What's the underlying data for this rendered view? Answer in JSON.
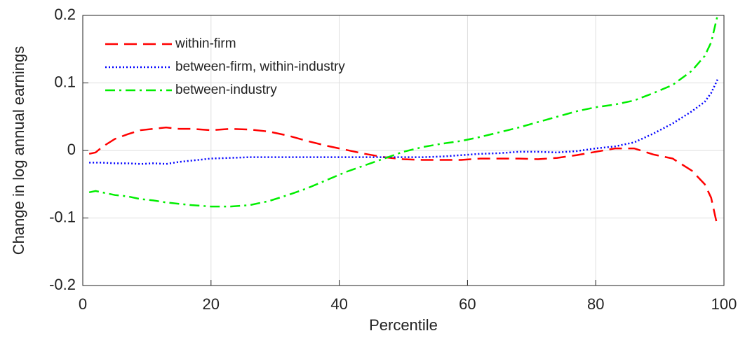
{
  "chart_data": {
    "type": "line",
    "x_label": "Percentile",
    "y_label": "Change in log annual earnings",
    "x": [
      1,
      2,
      3,
      5,
      7,
      9,
      11,
      13,
      15,
      17,
      20,
      23,
      26,
      29,
      32,
      35,
      38,
      41,
      44,
      47,
      50,
      53,
      56,
      59,
      62,
      65,
      68,
      71,
      74,
      77,
      80,
      83,
      86,
      89,
      92,
      95,
      97,
      98,
      99
    ],
    "series": [
      {
        "name": "within-firm",
        "color": "#ff0000",
        "dash": "dashed",
        "values": [
          -0.005,
          -0.003,
          0.005,
          0.017,
          0.024,
          0.03,
          0.032,
          0.034,
          0.032,
          0.032,
          0.03,
          0.032,
          0.031,
          0.028,
          0.022,
          0.014,
          0.007,
          0.001,
          -0.005,
          -0.01,
          -0.013,
          -0.014,
          -0.014,
          -0.014,
          -0.012,
          -0.012,
          -0.012,
          -0.013,
          -0.011,
          -0.007,
          -0.002,
          0.003,
          0.003,
          -0.006,
          -0.012,
          -0.03,
          -0.05,
          -0.07,
          -0.113
        ]
      },
      {
        "name": "between-firm, within-industry",
        "color": "#0000ff",
        "dash": "dotted",
        "values": [
          -0.018,
          -0.018,
          -0.018,
          -0.019,
          -0.019,
          -0.02,
          -0.019,
          -0.02,
          -0.017,
          -0.015,
          -0.012,
          -0.011,
          -0.01,
          -0.01,
          -0.01,
          -0.01,
          -0.01,
          -0.01,
          -0.01,
          -0.01,
          -0.01,
          -0.01,
          -0.009,
          -0.007,
          -0.005,
          -0.004,
          -0.002,
          -0.002,
          -0.003,
          -0.001,
          0.003,
          0.006,
          0.012,
          0.025,
          0.04,
          0.058,
          0.072,
          0.085,
          0.105
        ]
      },
      {
        "name": "between-industry",
        "color": "#00ee00",
        "dash": "dashdot",
        "values": [
          -0.062,
          -0.06,
          -0.062,
          -0.066,
          -0.068,
          -0.072,
          -0.074,
          -0.077,
          -0.079,
          -0.081,
          -0.083,
          -0.083,
          -0.081,
          -0.075,
          -0.066,
          -0.056,
          -0.044,
          -0.032,
          -0.022,
          -0.012,
          -0.002,
          0.005,
          0.01,
          0.014,
          0.02,
          0.027,
          0.034,
          0.042,
          0.05,
          0.058,
          0.064,
          0.068,
          0.074,
          0.085,
          0.097,
          0.118,
          0.14,
          0.16,
          0.2
        ]
      }
    ],
    "xlim": [
      0,
      100
    ],
    "xticks": [
      0,
      20,
      40,
      60,
      80,
      100
    ],
    "ylim": [
      -0.2,
      0.2
    ],
    "yticks": [
      -0.2,
      -0.1,
      0,
      0.1,
      0.2
    ],
    "grid": true,
    "legend": "top-left"
  }
}
